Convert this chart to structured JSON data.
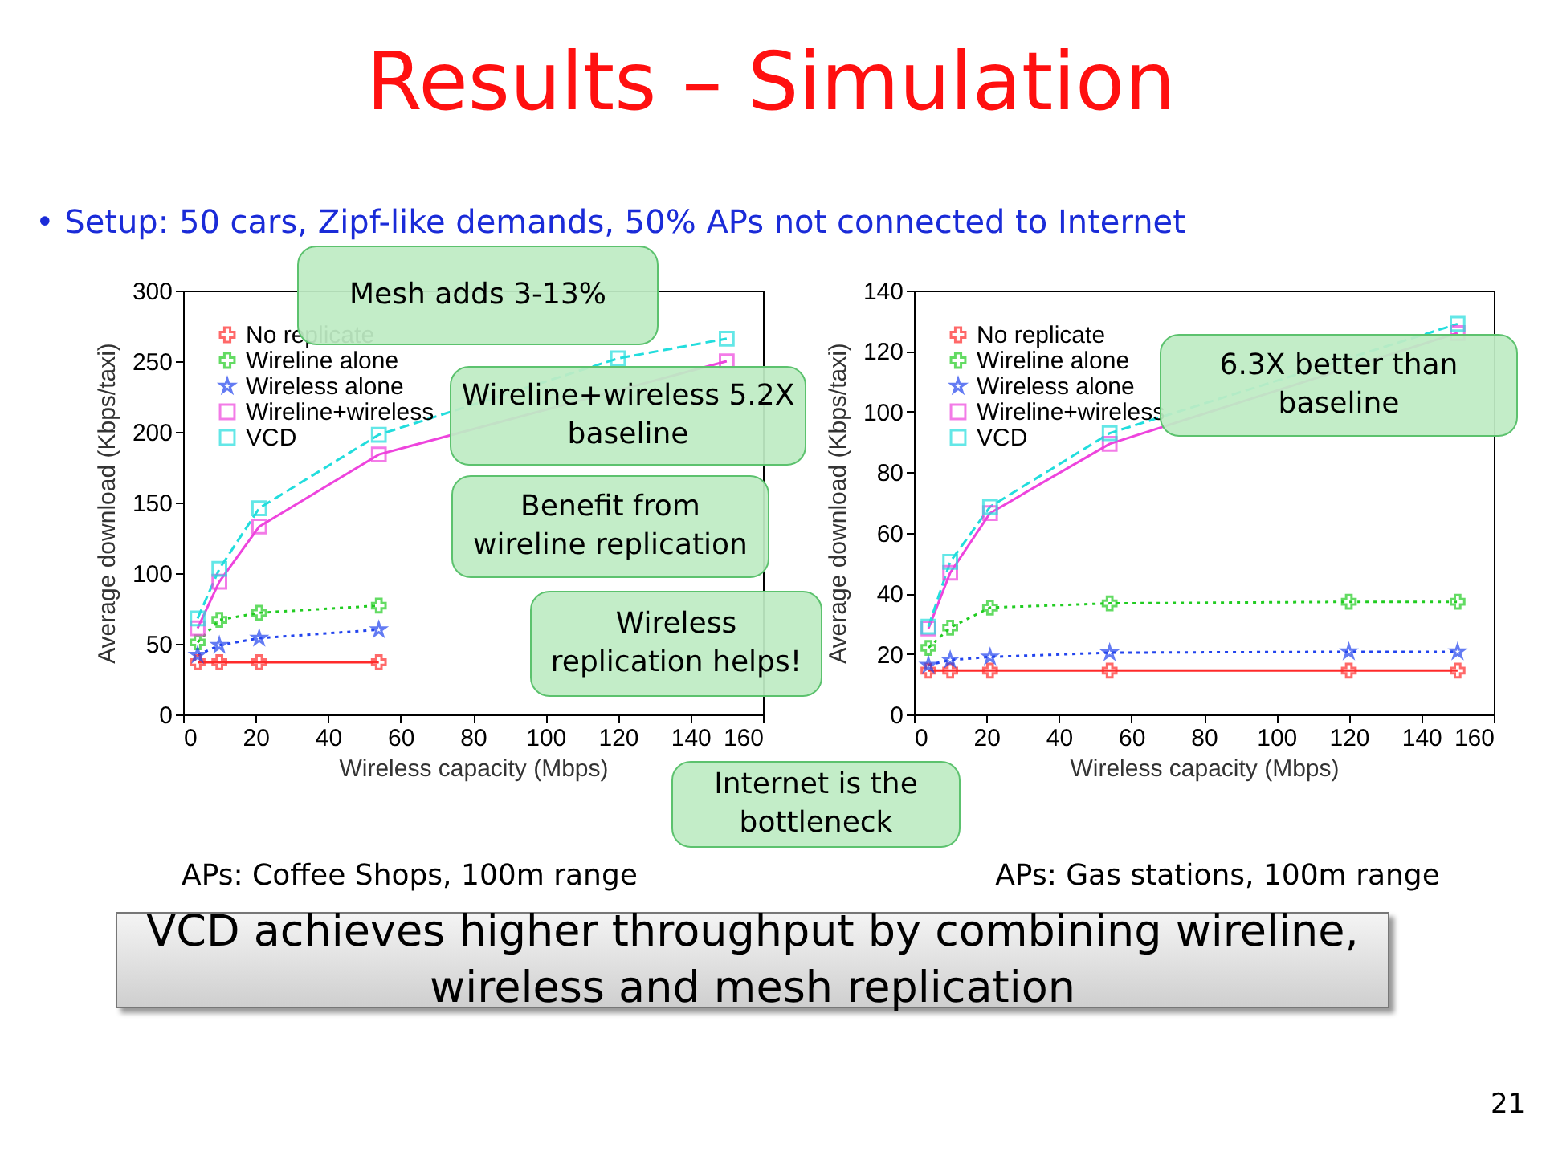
{
  "chart_data": [
    {
      "type": "line",
      "title": "Results – Simulation",
      "subtitle": "• Setup: 50 cars, Zipf-like demands, 50% APs not connected to Internet",
      "xlabel": "Wireless capacity (Mbps)",
      "ylabel": "Average download (Kbps/taxi)",
      "x": [
        4,
        10,
        21,
        54,
        120,
        150
      ],
      "xlim": [
        0,
        160
      ],
      "xticks": [
        0,
        20,
        40,
        60,
        80,
        100,
        120,
        140,
        160
      ],
      "ylim": [
        0,
        300
      ],
      "yticks": [
        0,
        50,
        100,
        150,
        200,
        250,
        300
      ],
      "grid": false,
      "legend": "top left",
      "series": [
        {
          "name": "No replicate",
          "color": "#ff2a2a",
          "marker": "cross",
          "line_style": "solid",
          "values": [
            37,
            37,
            37,
            37,
            null,
            null
          ]
        },
        {
          "name": "Wireline alone",
          "color": "#22cc22",
          "marker": "cross",
          "line_style": "dotted",
          "values": [
            51,
            67,
            72,
            77,
            null,
            null
          ]
        },
        {
          "name": "Wireless alone",
          "color": "#2244ee",
          "marker": "star",
          "line_style": "dotted",
          "values": [
            42,
            49,
            54,
            60,
            null,
            null
          ]
        },
        {
          "name": "Wireline+wireless",
          "color": "#ee44dd",
          "marker": "square",
          "line_style": "solid",
          "values": [
            61,
            94,
            133,
            184,
            null,
            250
          ]
        },
        {
          "name": "VCD",
          "color": "#22dddd",
          "marker": "square",
          "line_style": "dashed",
          "values": [
            68,
            103,
            146,
            198,
            252,
            266
          ]
        }
      ],
      "annotations": [
        "Mesh adds 3-13%",
        "Wireline+wireless 5.2X baseline",
        "Benefit from wireline replication",
        "Wireless replication helps!",
        "Internet is the bottleneck",
        "APs: Coffee Shops, 100m range"
      ]
    },
    {
      "type": "line",
      "xlabel": "Wireless capacity (Mbps)",
      "ylabel": "Average download (Kbps/taxi)",
      "x": [
        4,
        10,
        21,
        54,
        120,
        150
      ],
      "xlim": [
        0,
        160
      ],
      "xticks": [
        0,
        20,
        40,
        60,
        80,
        100,
        120,
        140,
        160
      ],
      "ylim": [
        0,
        140
      ],
      "yticks": [
        0,
        20,
        40,
        60,
        80,
        100,
        120,
        140
      ],
      "grid": false,
      "legend": "top left",
      "series": [
        {
          "name": "No replicate",
          "color": "#ff2a2a",
          "marker": "cross",
          "line_style": "solid",
          "values": [
            14.5,
            14.5,
            14.5,
            14.5,
            14.5,
            14.5
          ]
        },
        {
          "name": "Wireline alone",
          "color": "#22cc22",
          "marker": "cross",
          "line_style": "dotted",
          "values": [
            22,
            28.7,
            35.3,
            36.7,
            37.2,
            37.2
          ]
        },
        {
          "name": "Wireless alone",
          "color": "#2244ee",
          "marker": "star",
          "line_style": "dotted",
          "values": [
            16.3,
            18,
            19,
            20.4,
            20.7,
            20.7
          ]
        },
        {
          "name": "Wireline+wireless",
          "color": "#ee44dd",
          "marker": "square",
          "line_style": "solid",
          "values": [
            28.4,
            46.8,
            66.5,
            89.4,
            null,
            126
          ]
        },
        {
          "name": "VCD",
          "color": "#22dddd",
          "marker": "square",
          "line_style": "dashed",
          "values": [
            29,
            50.4,
            68.6,
            92.9,
            null,
            129
          ]
        }
      ],
      "annotations": [
        "6.3X better than baseline",
        "APs: Gas stations, 100m range",
        "VCD achieves higher throughput by combining wireline, wireless and mesh replication",
        "21"
      ]
    }
  ]
}
